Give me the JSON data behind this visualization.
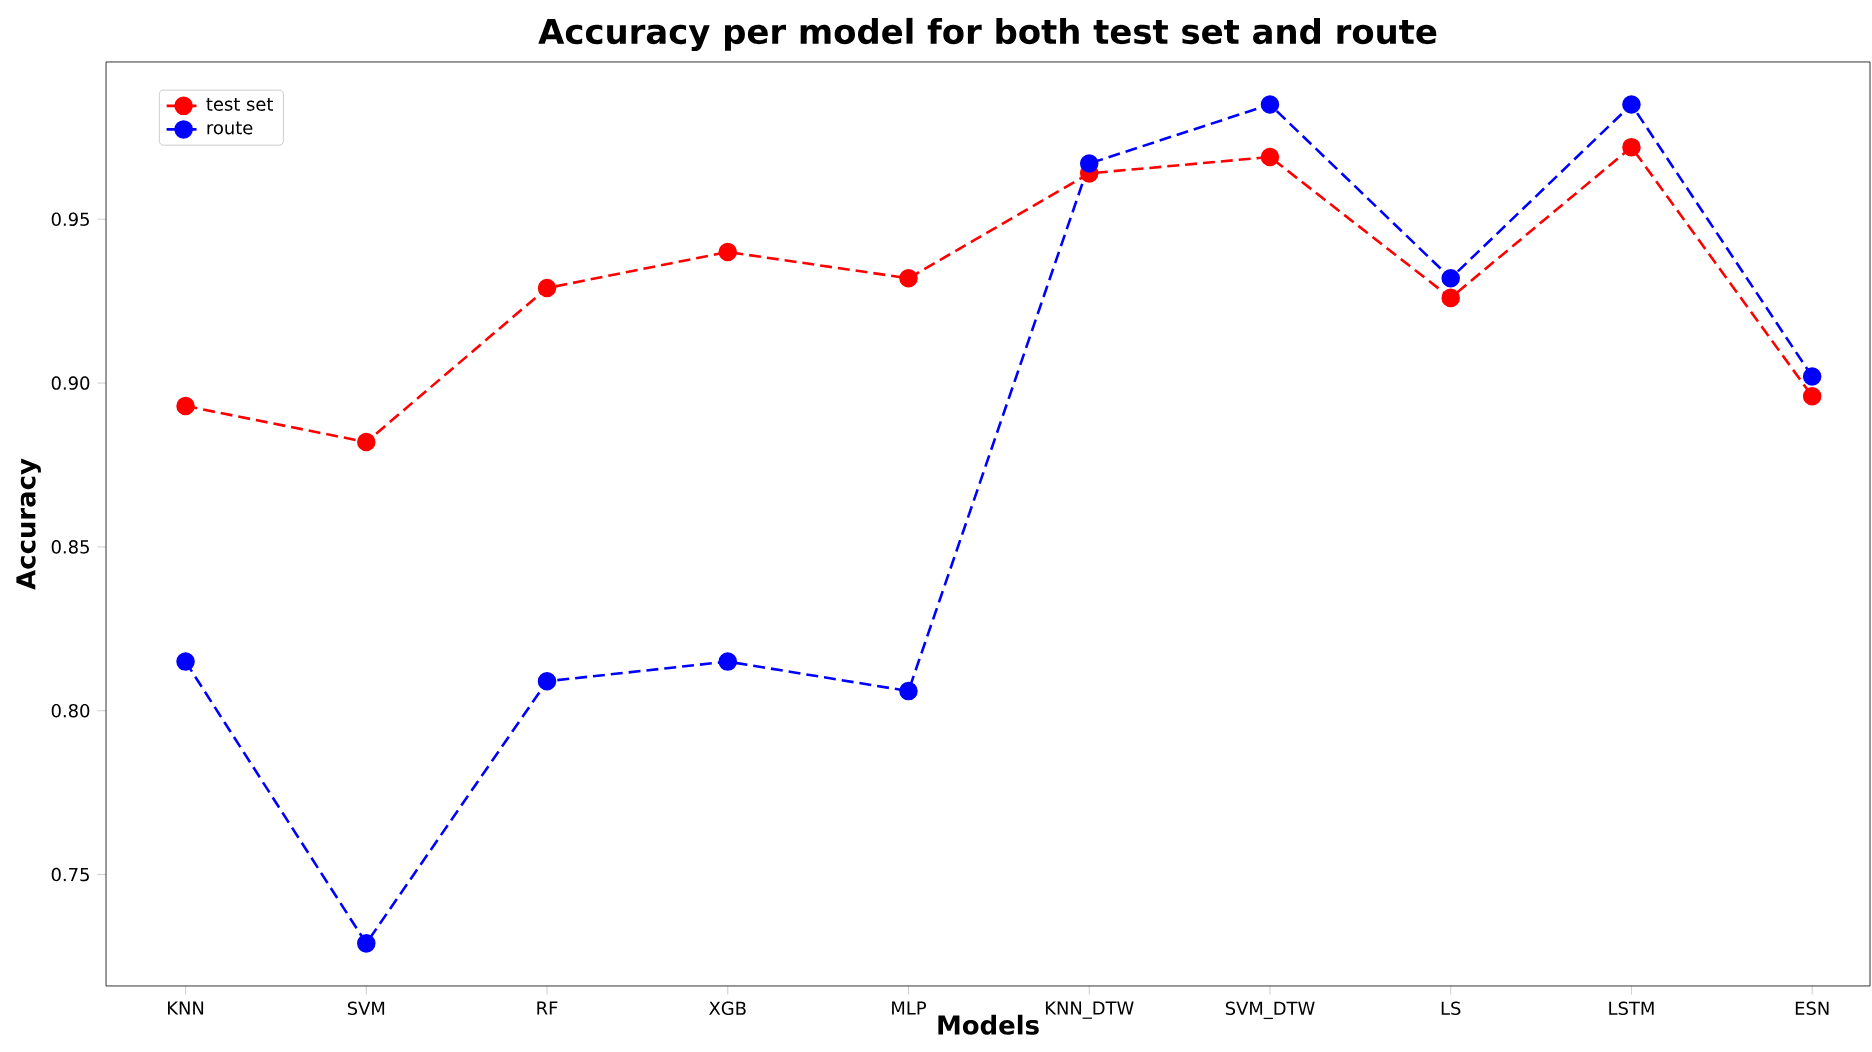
{
  "chart_data": {
    "type": "line",
    "title": "Accuracy per model for both test set and route",
    "xlabel": "Models",
    "ylabel": "Accuracy",
    "categories": [
      "KNN",
      "SVM",
      "RF",
      "XGB",
      "MLP",
      "KNN_DTW",
      "SVM_DTW",
      "LS",
      "LSTM",
      "ESN"
    ],
    "series": [
      {
        "name": "test set",
        "color": "#ff0000",
        "values": [
          0.893,
          0.882,
          0.929,
          0.94,
          0.932,
          0.964,
          0.969,
          0.926,
          0.972,
          0.896
        ]
      },
      {
        "name": "route",
        "color": "#0000ff",
        "values": [
          0.815,
          0.729,
          0.809,
          0.815,
          0.806,
          0.967,
          0.985,
          0.932,
          0.985,
          0.902
        ]
      }
    ],
    "ylim": [
      0.716,
      0.998
    ],
    "yticks": [
      {
        "value": 0.75,
        "label": "0.75"
      },
      {
        "value": 0.8,
        "label": "0.80"
      },
      {
        "value": 0.85,
        "label": "0.85"
      },
      {
        "value": 0.9,
        "label": "0.90"
      },
      {
        "value": 0.95,
        "label": "0.95"
      }
    ],
    "marker": "circle",
    "line_style": "dashed",
    "legend": "top left",
    "grid": false
  }
}
